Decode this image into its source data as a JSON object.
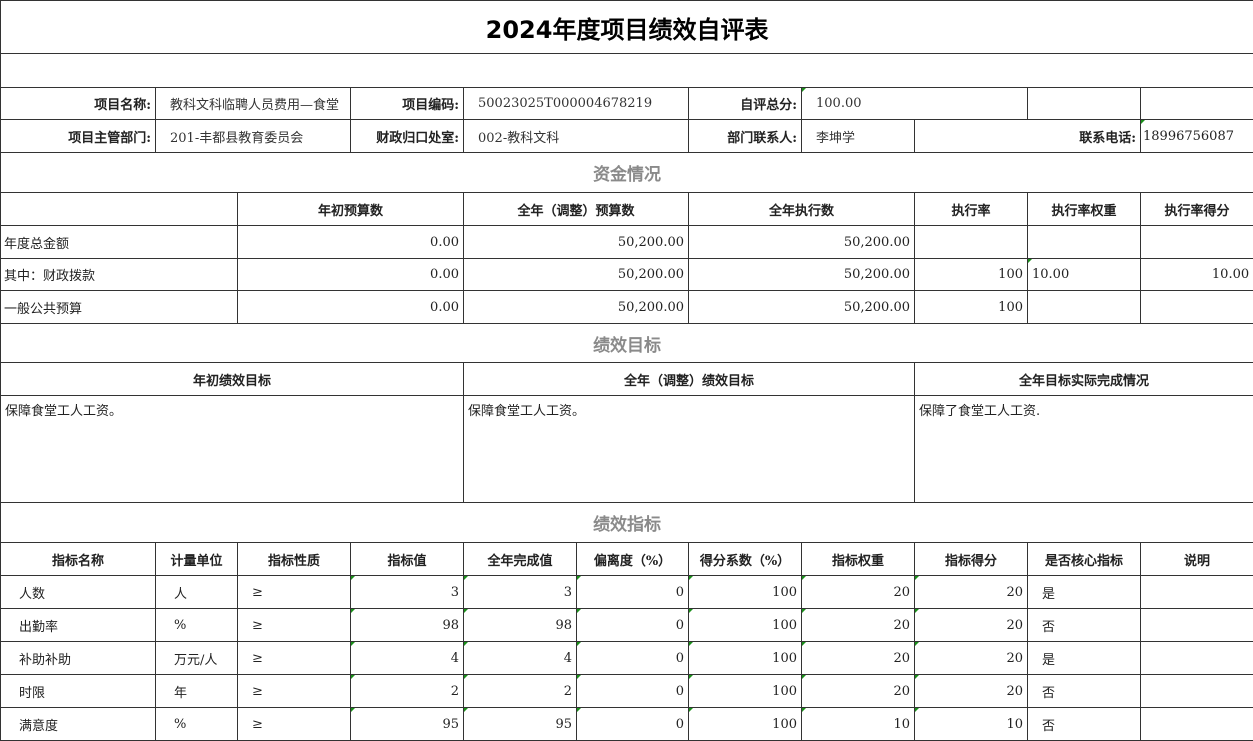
{
  "title": "2024年度项目绩效自评表",
  "info": {
    "project_name_label": "项目名称:",
    "project_name": "教科文科临聘人员费用—食堂",
    "project_code_label": "项目编码:",
    "project_code": "50023025T000004678219",
    "self_score_label": "自评总分:",
    "self_score": "100.00",
    "dept_label": "项目主管部门:",
    "dept": "201-丰都县教育委员会",
    "finance_office_label": "财政归口处室:",
    "finance_office": "002-教科文科",
    "contact_label": "部门联系人:",
    "contact": "李坤学",
    "phone_label": "联系电话:",
    "phone": "18996756087"
  },
  "funds": {
    "section_title": "资金情况",
    "headers": [
      "年初预算数",
      "全年（调整）预算数",
      "全年执行数",
      "执行率",
      "执行率权重",
      "执行率得分"
    ],
    "rows": [
      {
        "name": "年度总金额",
        "initial": "0.00",
        "adjusted": "50,200.00",
        "executed": "50,200.00",
        "rate": "",
        "weight": "",
        "score": ""
      },
      {
        "name": "其中：财政拨款",
        "initial": "0.00",
        "adjusted": "50,200.00",
        "executed": "50,200.00",
        "rate": "100",
        "weight": "10.00",
        "score": "10.00"
      },
      {
        "name": "一般公共预算",
        "initial": "0.00",
        "adjusted": "50,200.00",
        "executed": "50,200.00",
        "rate": "100",
        "weight": "",
        "score": ""
      }
    ]
  },
  "goals": {
    "section_title": "绩效目标",
    "headers": [
      "年初绩效目标",
      "全年（调整）绩效目标",
      "全年目标实际完成情况"
    ],
    "values": [
      "保障食堂工人工资。",
      "保障食堂工人工资。",
      "保障了食堂工人工资."
    ]
  },
  "indicators": {
    "section_title": "绩效指标",
    "headers": [
      "指标名称",
      "计量单位",
      "指标性质",
      "指标值",
      "全年完成值",
      "偏离度（%）",
      "得分系数（%）",
      "指标权重",
      "指标得分",
      "是否核心指标",
      "说明"
    ],
    "rows": [
      [
        "人数",
        "人",
        "≥",
        "3",
        "3",
        "0",
        "100",
        "20",
        "20",
        "是",
        ""
      ],
      [
        "出勤率",
        "%",
        "≥",
        "98",
        "98",
        "0",
        "100",
        "20",
        "20",
        "否",
        ""
      ],
      [
        "补助补助",
        "万元/人",
        "≥",
        "4",
        "4",
        "0",
        "100",
        "20",
        "20",
        "是",
        ""
      ],
      [
        "时限",
        "年",
        "≥",
        "2",
        "2",
        "0",
        "100",
        "20",
        "20",
        "否",
        ""
      ],
      [
        "满意度",
        "%",
        "≥",
        "95",
        "95",
        "0",
        "100",
        "10",
        "10",
        "否",
        ""
      ]
    ]
  }
}
